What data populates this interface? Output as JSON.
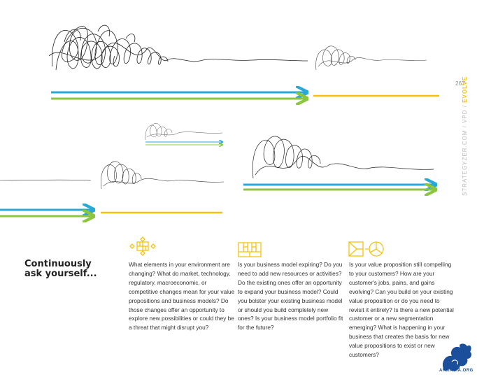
{
  "page": {
    "number": "267",
    "side_label": "STRATEGYZER.COM / VPD /",
    "side_section": "EVOLVE"
  },
  "colors": {
    "blue": "#2aa8d6",
    "green": "#8cc63f",
    "yellow": "#f1c30f",
    "ink": "#222222"
  },
  "heading": "Continuously ask yourself...",
  "columns": [
    {
      "icon": "environment-map-icon",
      "text": "What elements in your environment are changing? What do market, technology, regulatory, macroeconomic, or competitive changes mean for your value propositions and business models? Do those changes offer an opportunity to explore new possibilities or could they be a threat that might disrupt you?"
    },
    {
      "icon": "business-model-canvas-icon",
      "text": "Is your business model expiring? Do you need to add new resources or activities? Do the existing ones offer an opportunity to expand your business model? Could you bolster your existing business model or should you build completely new ones? Is your business model portfolio fit for the future?"
    },
    {
      "icon": "value-proposition-canvas-icon",
      "text": "Is your value proposition still compelling to your customers? How are your customer's jobs, pains, and gains evolving? Can you build on your existing value proposition or do you need to revisit it entirely? Is there a new potential customer or a new segmentation emerging? What is happening in your business that creates the basis for new value propositions to exist or new customers?"
    }
  ],
  "watermark": "ARMASIA.ORG"
}
